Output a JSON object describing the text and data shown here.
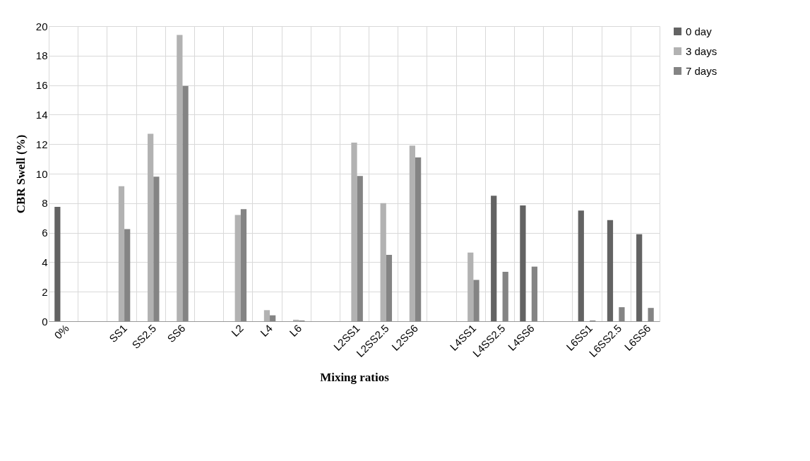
{
  "chart_data": {
    "type": "bar",
    "xlabel": "Mixing ratios",
    "ylabel": "CBR Swell (%)",
    "categories": [
      "0%",
      null,
      "SS1",
      "SS2.5",
      "SS6",
      null,
      "L2",
      "L4",
      "L6",
      null,
      "L2SS1",
      "L2SS2.5",
      "L2SS6",
      null,
      "L4SS1",
      "L4SS2.5",
      "L4SS6",
      null,
      "L6SS1",
      "L6SS2.5",
      "L6SS6"
    ],
    "series": [
      {
        "name": "0 day",
        "color": "#636363",
        "values": [
          7.75,
          null,
          0,
          0,
          0,
          null,
          0,
          0,
          0,
          null,
          0,
          0,
          0,
          null,
          0,
          8.5,
          7.85,
          null,
          7.5,
          6.85,
          5.9
        ]
      },
      {
        "name": "3 days",
        "color": "#b2b2b2",
        "values": [
          0,
          null,
          9.15,
          12.7,
          19.4,
          null,
          7.2,
          0.75,
          0.1,
          null,
          12.1,
          8.0,
          11.9,
          null,
          4.65,
          0,
          0,
          null,
          0,
          0,
          0
        ]
      },
      {
        "name": "7 days",
        "color": "#848484",
        "values": [
          0,
          null,
          6.25,
          9.8,
          15.95,
          null,
          7.6,
          0.4,
          0.05,
          null,
          9.85,
          4.5,
          11.1,
          null,
          2.8,
          3.35,
          3.7,
          null,
          0.05,
          0.95,
          0.9
        ]
      }
    ],
    "ylim": [
      0,
      20
    ],
    "yticks": [
      0,
      2,
      4,
      6,
      8,
      10,
      12,
      14,
      16,
      18,
      20
    ],
    "grid": true,
    "legend": "right"
  }
}
